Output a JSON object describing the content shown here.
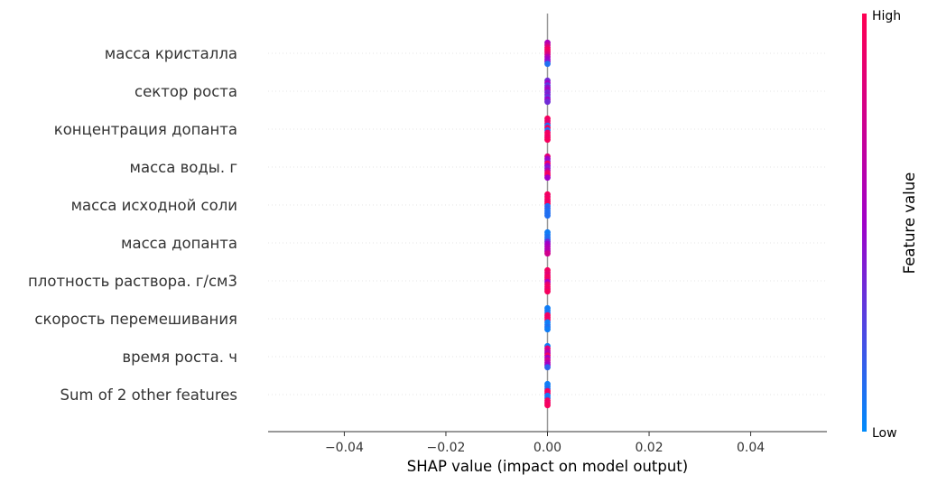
{
  "chart_data": {
    "type": "scatter",
    "subtype": "shap-beeswarm",
    "xlabel": "SHAP value (impact on model output)",
    "xlim": [
      -0.055,
      0.055
    ],
    "xticks": [
      -0.04,
      -0.02,
      0.0,
      0.02,
      0.04
    ],
    "xtick_labels": [
      "−0.04",
      "−0.02",
      "0.00",
      "0.02",
      "0.04"
    ],
    "features": [
      {
        "label": "масса кристалла",
        "shap_values": [
          0,
          0,
          0,
          0,
          0,
          0,
          0,
          0,
          0,
          0
        ],
        "feature_levels": [
          0.55,
          0.7,
          0.85,
          0.95,
          0.9,
          0.8,
          0.6,
          0.5,
          0.45,
          0.1
        ]
      },
      {
        "label": "сектор роста",
        "shap_values": [
          0,
          0,
          0,
          0,
          0,
          0,
          0,
          0,
          0,
          0
        ],
        "feature_levels": [
          0.35,
          0.5,
          0.3,
          0.45,
          0.55,
          0.35,
          0.4,
          0.3,
          0.5,
          0.35
        ]
      },
      {
        "label": "концентрация допанта",
        "shap_values": [
          0,
          0,
          0,
          0,
          0,
          0,
          0,
          0,
          0,
          0
        ],
        "feature_levels": [
          0.95,
          0.9,
          0.85,
          0.1,
          0.95,
          0.1,
          0.9,
          0.95,
          0.9,
          0.95
        ]
      },
      {
        "label": "масса воды. г",
        "shap_values": [
          0,
          0,
          0,
          0,
          0,
          0,
          0,
          0,
          0,
          0
        ],
        "feature_levels": [
          0.85,
          0.5,
          0.45,
          0.95,
          0.5,
          0.4,
          0.6,
          0.9,
          0.95,
          0.5
        ]
      },
      {
        "label": "масса исходной соли",
        "shap_values": [
          0,
          0,
          0,
          0,
          0,
          0,
          0,
          0,
          0,
          0
        ],
        "feature_levels": [
          0.95,
          0.9,
          0.95,
          0.9,
          0.95,
          0.1,
          0.15,
          0.1,
          0.1,
          0.1
        ]
      },
      {
        "label": "масса допанта ",
        "shap_values": [
          0,
          0,
          0,
          0,
          0,
          0,
          0,
          0,
          0,
          0
        ],
        "feature_levels": [
          0.05,
          0.05,
          0.1,
          0.1,
          0.35,
          0.5,
          0.55,
          0.6,
          0.6,
          0.75
        ]
      },
      {
        "label": "плотность раствора. г/см3",
        "shap_values": [
          0,
          0,
          0,
          0,
          0,
          0,
          0,
          0,
          0,
          0
        ],
        "feature_levels": [
          0.95,
          0.9,
          0.85,
          0.95,
          0.9,
          0.5,
          0.85,
          0.95,
          0.9,
          0.95
        ]
      },
      {
        "label": "скорость перемешивания",
        "shap_values": [
          0,
          0,
          0,
          0,
          0,
          0,
          0,
          0,
          0,
          0
        ],
        "feature_levels": [
          0.05,
          0.05,
          0.1,
          0.95,
          0.9,
          0.95,
          0.05,
          0.05,
          0.1,
          0.05
        ]
      },
      {
        "label": "время роста. ч",
        "shap_values": [
          0,
          0,
          0,
          0,
          0,
          0,
          0,
          0,
          0,
          0
        ],
        "feature_levels": [
          0.05,
          0.85,
          0.7,
          0.6,
          0.9,
          0.5,
          0.75,
          0.6,
          0.5,
          0.15
        ]
      },
      {
        "label": "Sum of 2 other features",
        "shap_values": [
          0,
          0,
          0,
          0,
          0,
          0,
          0,
          0,
          0,
          0
        ],
        "feature_levels": [
          0.05,
          0.05,
          0.1,
          0.95,
          0.9,
          0.05,
          0.1,
          0.95,
          0.9,
          0.95
        ]
      }
    ],
    "colorbar": {
      "label": "Feature value",
      "high_label": "High",
      "low_label": "Low",
      "low_color": "#008bfb",
      "mid_color": "#a000c8",
      "high_color": "#ff0052"
    },
    "grid": false
  }
}
